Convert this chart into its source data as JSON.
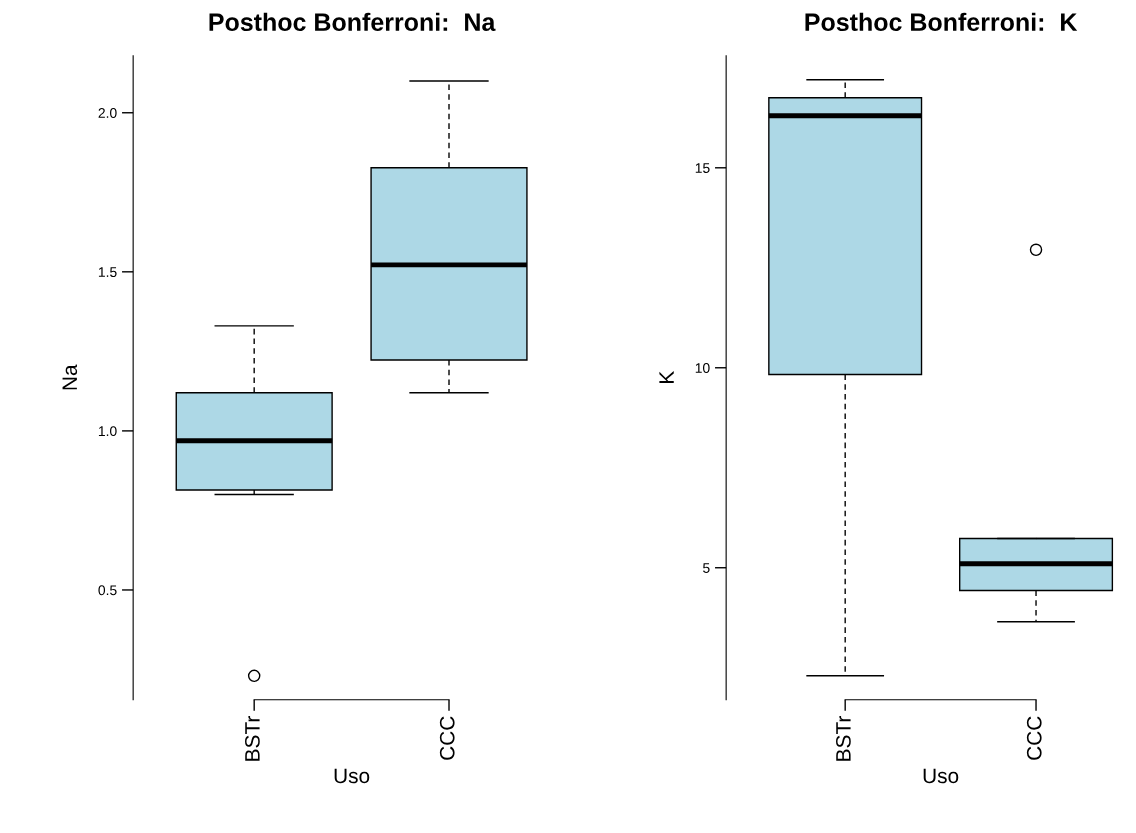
{
  "chart_data": [
    {
      "type": "box",
      "title": "Posthoc Bonferroni:  Na",
      "xlabel": "Uso",
      "ylabel": "Na",
      "categories": [
        "BSTr",
        "CCC"
      ],
      "color": "#add8e6",
      "ylim": [
        0.155,
        2.179
      ],
      "yticks": [
        {
          "value": 0.5,
          "label": "0.5"
        },
        {
          "value": 1.0,
          "label": "1.0"
        },
        {
          "value": 1.5,
          "label": "1.5"
        },
        {
          "value": 2.0,
          "label": "2.0"
        }
      ],
      "grid": false,
      "boxes": [
        {
          "low": 0.8,
          "q1": 0.814,
          "median": 0.969,
          "q3": 1.12,
          "high": 1.33,
          "outliers": [
            0.23
          ]
        },
        {
          "low": 1.12,
          "q1": 1.223,
          "median": 1.522,
          "q3": 1.827,
          "high": 2.1
        }
      ]
    },
    {
      "type": "box",
      "title": "Posthoc Bonferroni:  K",
      "xlabel": "Uso",
      "ylabel": "K",
      "categories": [
        "BSTr",
        "CCC"
      ],
      "color": "#add8e6",
      "ylim": [
        1.7,
        17.8
      ],
      "yticks": [
        5,
        10,
        15
      ],
      "grid": false,
      "boxes": [
        {
          "low": 2.3,
          "q1": 9.83,
          "median": 16.3,
          "q3": 16.75,
          "high": 17.2
        },
        {
          "low": 3.65,
          "q1": 4.43,
          "median": 5.1,
          "q3": 5.73,
          "high": 5.73,
          "outliers": [
            12.95
          ]
        }
      ]
    }
  ]
}
